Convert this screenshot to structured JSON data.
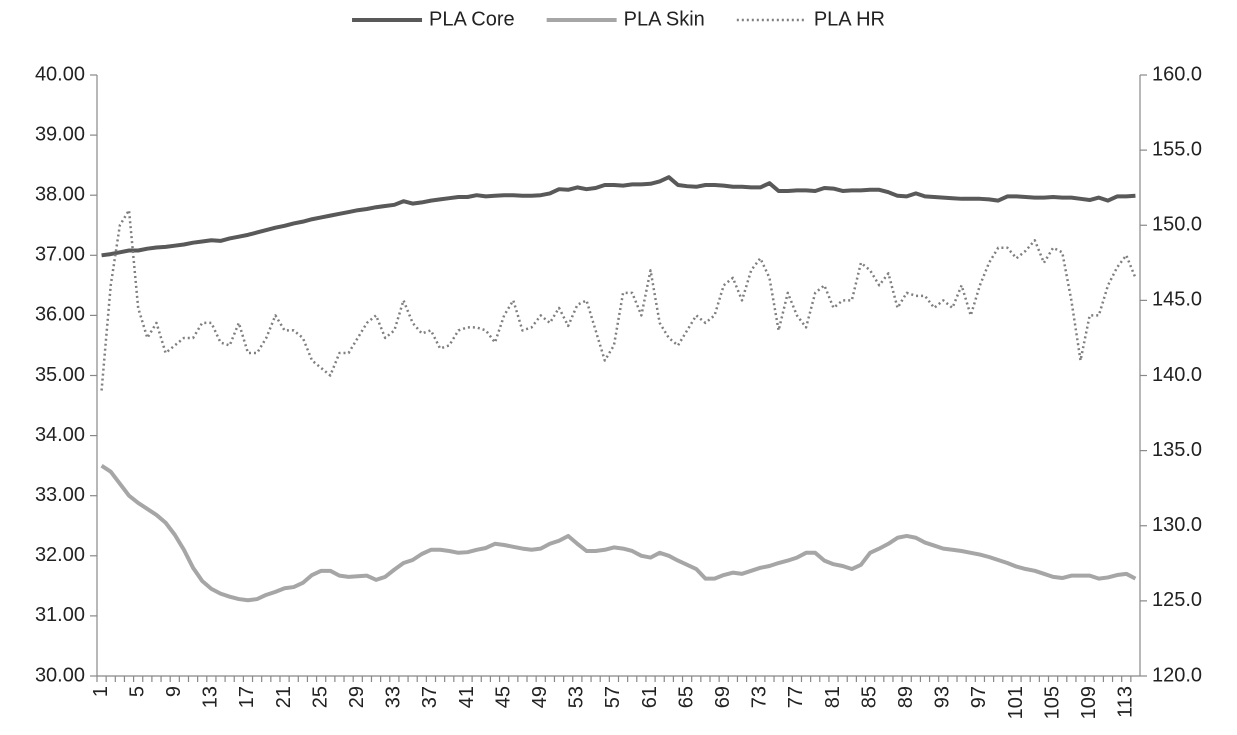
{
  "chart_data": {
    "type": "line",
    "categories": [
      1,
      null,
      null,
      null,
      5,
      null,
      null,
      null,
      9,
      null,
      null,
      null,
      13,
      null,
      null,
      null,
      17,
      null,
      null,
      null,
      21,
      null,
      null,
      null,
      25,
      null,
      null,
      null,
      29,
      null,
      null,
      null,
      33,
      null,
      null,
      null,
      37,
      null,
      null,
      null,
      41,
      null,
      null,
      null,
      45,
      null,
      null,
      null,
      49,
      null,
      null,
      null,
      53,
      null,
      null,
      null,
      57,
      null,
      null,
      null,
      61,
      null,
      null,
      null,
      65,
      null,
      null,
      null,
      69,
      null,
      null,
      null,
      73,
      null,
      null,
      null,
      77,
      null,
      null,
      null,
      81,
      null,
      null,
      null,
      85,
      null,
      null,
      null,
      89,
      null,
      null,
      null,
      93,
      null,
      null,
      null,
      97,
      null,
      null,
      null,
      101,
      null,
      null,
      null,
      105,
      null,
      null,
      null,
      109,
      null,
      null,
      null,
      113,
      null
    ],
    "series": [
      {
        "name": "PLA Core",
        "color": "#595959",
        "width": 4,
        "dash": "solid",
        "values": [
          37.0,
          37.02,
          37.05,
          37.08,
          37.08,
          37.11,
          37.13,
          37.14,
          37.16,
          37.18,
          37.21,
          37.23,
          37.25,
          37.24,
          37.28,
          37.31,
          37.34,
          37.38,
          37.42,
          37.46,
          37.49,
          37.53,
          37.56,
          37.6,
          37.63,
          37.66,
          37.69,
          37.72,
          37.75,
          37.77,
          37.8,
          37.82,
          37.84,
          37.9,
          37.86,
          37.88,
          37.91,
          37.93,
          37.95,
          37.97,
          37.97,
          38.0,
          37.98,
          37.99,
          38.0,
          38.0,
          37.99,
          37.99,
          38.0,
          38.03,
          38.1,
          38.09,
          38.13,
          38.1,
          38.12,
          38.17,
          38.17,
          38.16,
          38.18,
          38.18,
          38.19,
          38.23,
          38.3,
          38.17,
          38.15,
          38.14,
          38.17,
          38.17,
          38.16,
          38.14,
          38.14,
          38.13,
          38.13,
          38.2,
          38.07,
          38.07,
          38.08,
          38.08,
          38.07,
          38.12,
          38.11,
          38.07,
          38.08,
          38.08,
          38.09,
          38.09,
          38.05,
          37.99,
          37.98,
          38.03,
          37.98,
          37.97,
          37.96,
          37.95,
          37.94,
          37.94,
          37.94,
          37.93,
          37.91,
          37.98,
          37.98,
          37.97,
          37.96,
          37.96,
          37.97,
          37.96,
          37.96,
          37.94,
          37.92,
          37.96,
          37.91,
          37.98,
          37.98,
          37.99
        ]
      },
      {
        "name": "PLA Skin",
        "color": "#a6a6a6",
        "width": 4,
        "dash": "solid",
        "values": [
          33.5,
          33.4,
          33.2,
          33.0,
          32.88,
          32.78,
          32.68,
          32.55,
          32.35,
          32.1,
          31.8,
          31.58,
          31.45,
          31.37,
          31.32,
          31.28,
          31.26,
          31.28,
          31.35,
          31.4,
          31.46,
          31.48,
          31.55,
          31.68,
          31.75,
          31.75,
          31.67,
          31.65,
          31.66,
          31.67,
          31.6,
          31.65,
          31.77,
          31.88,
          31.93,
          32.03,
          32.1,
          32.1,
          32.08,
          32.05,
          32.06,
          32.1,
          32.13,
          32.2,
          32.18,
          32.15,
          32.12,
          32.1,
          32.12,
          32.2,
          32.25,
          32.33,
          32.2,
          32.08,
          32.08,
          32.1,
          32.14,
          32.12,
          32.08,
          32.0,
          31.97,
          32.05,
          32.0,
          31.92,
          31.85,
          31.78,
          31.62,
          31.62,
          31.68,
          31.72,
          31.7,
          31.75,
          31.8,
          31.83,
          31.88,
          31.92,
          31.97,
          32.05,
          32.05,
          31.92,
          31.86,
          31.83,
          31.78,
          31.85,
          32.05,
          32.12,
          32.2,
          32.3,
          32.33,
          32.3,
          32.22,
          32.17,
          32.12,
          32.1,
          32.08,
          32.05,
          32.02,
          31.98,
          31.93,
          31.88,
          31.82,
          31.78,
          31.75,
          31.7,
          31.65,
          31.63,
          31.67,
          31.67,
          31.67,
          31.62,
          31.64,
          31.68,
          31.7,
          31.62
        ]
      },
      {
        "name": "PLA HR",
        "color": "#7f7f7f",
        "width": 2.5,
        "dash": "dotted",
        "axis": "y2",
        "values": [
          139,
          146,
          150,
          151,
          144.5,
          142.5,
          143.5,
          141.5,
          142,
          142.5,
          142.5,
          143.5,
          143.5,
          142.2,
          142,
          143.5,
          141.5,
          141.5,
          142.5,
          144,
          143,
          143,
          142.5,
          141,
          140.5,
          140,
          141.5,
          141.5,
          142.5,
          143.5,
          144,
          142.5,
          143,
          145,
          143.5,
          142.8,
          143,
          141.8,
          142,
          143,
          143.2,
          143.2,
          143,
          142.2,
          144,
          145,
          143,
          143.2,
          144,
          143.5,
          144.5,
          143.3,
          144.7,
          145,
          143,
          141,
          142,
          145.5,
          145.5,
          144,
          147,
          143.5,
          142.5,
          142,
          143,
          144,
          143.5,
          144,
          146,
          146.5,
          145,
          147,
          147.8,
          146.5,
          143,
          145.5,
          144,
          143.2,
          145.5,
          146,
          144.5,
          145,
          145,
          147.5,
          147,
          146,
          146.8,
          144.5,
          145.5,
          145.3,
          145.3,
          144.5,
          145,
          144.5,
          146,
          144,
          146,
          147.5,
          148.5,
          148.5,
          147.8,
          148.3,
          149,
          147.5,
          148.5,
          148.2,
          145,
          141,
          144,
          144,
          146,
          147.2,
          148,
          146.5
        ]
      }
    ],
    "ylim": [
      30,
      40
    ],
    "yticks": [
      {
        "value": 30,
        "label": "30.00"
      },
      {
        "value": 31,
        "label": "31.00"
      },
      {
        "value": 32,
        "label": "32.00"
      },
      {
        "value": 33,
        "label": "33.00"
      },
      {
        "value": 34,
        "label": "34.00"
      },
      {
        "value": 35,
        "label": "35.00"
      },
      {
        "value": 36,
        "label": "36.00"
      },
      {
        "value": 37,
        "label": "37.00"
      },
      {
        "value": 38,
        "label": "38.00"
      },
      {
        "value": 39,
        "label": "39.00"
      },
      {
        "value": 40,
        "label": "40.00"
      }
    ],
    "y2lim": [
      120,
      160
    ],
    "y2ticks": [
      {
        "value": 120,
        "label": "120.0"
      },
      {
        "value": 125,
        "label": "125.0"
      },
      {
        "value": 130,
        "label": "130.0"
      },
      {
        "value": 135,
        "label": "135.0"
      },
      {
        "value": 140,
        "label": "140.0"
      },
      {
        "value": 145,
        "label": "145.0"
      },
      {
        "value": 150,
        "label": "150.0"
      },
      {
        "value": 155,
        "label": "155.0"
      },
      {
        "value": 160,
        "label": "160.0"
      }
    ],
    "legend": "top",
    "grid": false
  }
}
